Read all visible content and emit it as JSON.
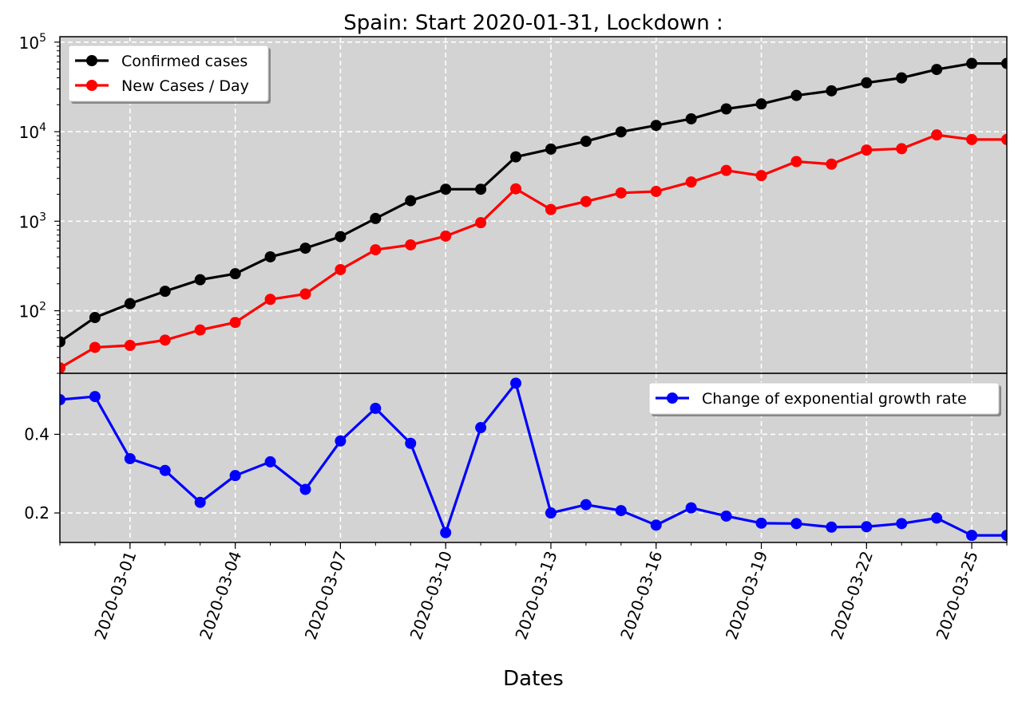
{
  "chart_data": [
    {
      "type": "line",
      "title": "Spain: Start 2020-01-31, Lockdown :",
      "xlabel": "",
      "ylabel": "",
      "yscale": "log",
      "ylim": [
        20,
        115000
      ],
      "xlim": [
        "2020-02-28",
        "2020-03-26"
      ],
      "grid": true,
      "legend": "top-left",
      "x": [
        "2020-02-28",
        "2020-02-29",
        "2020-03-01",
        "2020-03-02",
        "2020-03-03",
        "2020-03-04",
        "2020-03-05",
        "2020-03-06",
        "2020-03-07",
        "2020-03-08",
        "2020-03-09",
        "2020-03-10",
        "2020-03-11",
        "2020-03-12",
        "2020-03-13",
        "2020-03-14",
        "2020-03-15",
        "2020-03-16",
        "2020-03-17",
        "2020-03-18",
        "2020-03-19",
        "2020-03-20",
        "2020-03-21",
        "2020-03-22",
        "2020-03-23",
        "2020-03-24",
        "2020-03-25",
        "2020-03-26"
      ],
      "ytick_labels": [
        {
          "value": 100,
          "label": "10",
          "exp": "2"
        },
        {
          "value": 1000,
          "label": "10",
          "exp": "3"
        },
        {
          "value": 10000,
          "label": "10",
          "exp": "4"
        },
        {
          "value": 100000,
          "label": "10",
          "exp": "5"
        }
      ],
      "series": [
        {
          "name": "Confirmed cases",
          "color": "#000000",
          "values": [
            45,
            84,
            120,
            165,
            222,
            259,
            400,
            500,
            673,
            1073,
            1695,
            2277,
            2277,
            5232,
            6391,
            7798,
            9942,
            11748,
            13910,
            17963,
            20410,
            25374,
            28603,
            35136,
            39885,
            49515,
            57786,
            57786
          ]
        },
        {
          "name": "New Cases / Day",
          "color": "#ff0000",
          "values": [
            23,
            39,
            41,
            47,
            61,
            74,
            134,
            154,
            288,
            480,
            544,
            682,
            963,
            2300,
            1350,
            1660,
            2070,
            2150,
            2740,
            3690,
            3230,
            4640,
            4340,
            6230,
            6450,
            9200,
            8170,
            8170
          ]
        }
      ]
    },
    {
      "type": "line",
      "xlabel": "Dates",
      "ylabel": "",
      "ylim": [
        0.125,
        0.555
      ],
      "yticks": [
        0.2,
        0.4
      ],
      "xticks": [
        "2020-03-01",
        "2020-03-04",
        "2020-03-07",
        "2020-03-10",
        "2020-03-13",
        "2020-03-16",
        "2020-03-19",
        "2020-03-22",
        "2020-03-25"
      ],
      "grid": true,
      "legend": "top-right",
      "series": [
        {
          "name": "Change of exponential growth rate",
          "color": "#0000ff",
          "values": [
            0.488,
            0.496,
            0.338,
            0.308,
            0.227,
            0.295,
            0.33,
            0.26,
            0.383,
            0.466,
            0.377,
            0.15,
            0.417,
            0.53,
            0.2,
            0.221,
            0.206,
            0.169,
            0.213,
            0.192,
            0.174,
            0.173,
            0.164,
            0.165,
            0.173,
            0.187,
            0.143,
            0.143
          ]
        }
      ]
    }
  ]
}
